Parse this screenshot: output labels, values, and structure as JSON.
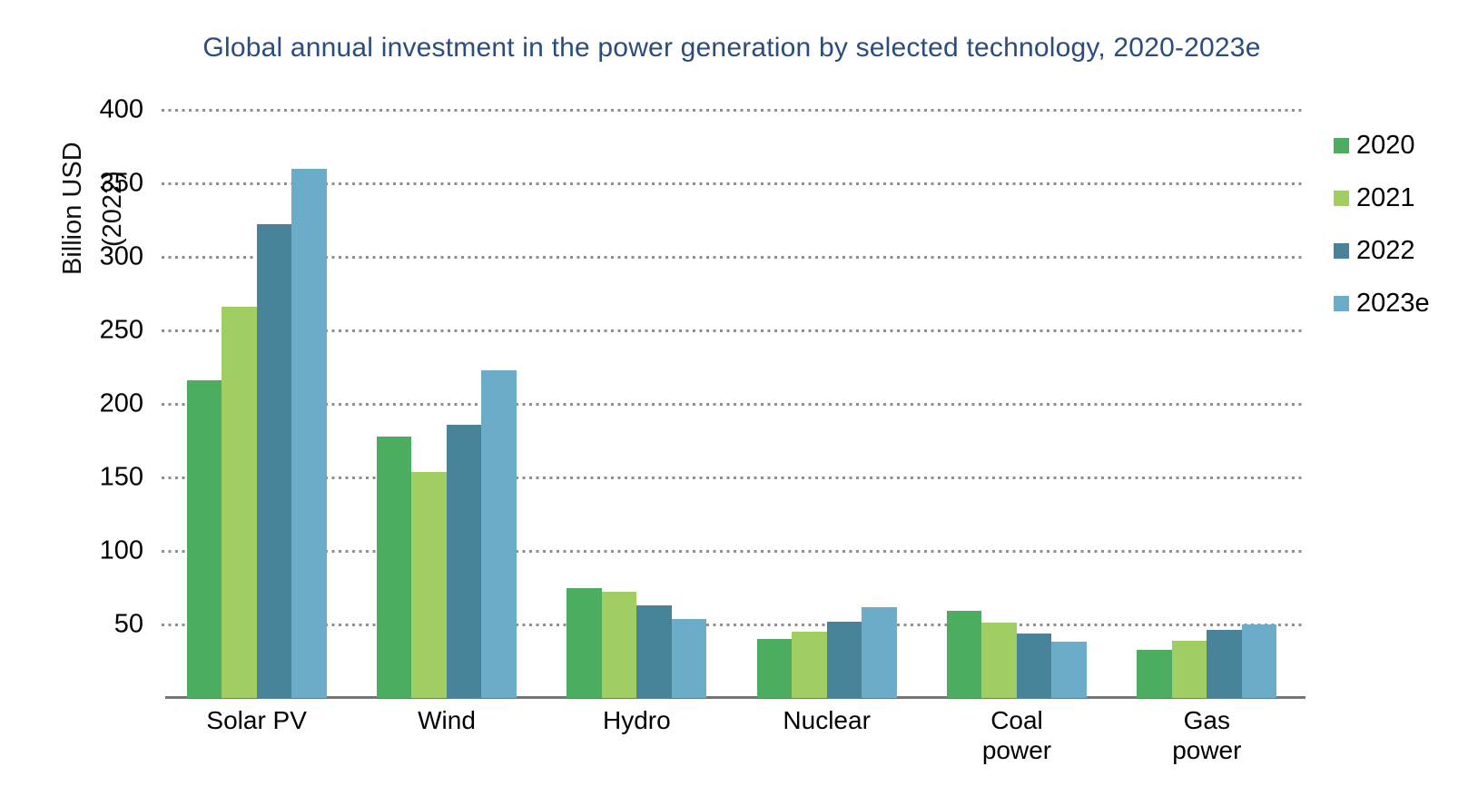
{
  "chart": {
    "title": "Global annual investment in the power generation by selected technology, 2020-2023e",
    "y_axis_title": "Billion USD (2022)"
  },
  "chart_data": {
    "type": "bar",
    "title": "Global annual investment in the power generation by selected technology, 2020-2023e",
    "xlabel": "",
    "ylabel": "Billion USD (2022)",
    "categories": [
      "Solar PV",
      "Wind",
      "Hydro",
      "Nuclear",
      "Coal power",
      "Gas power"
    ],
    "xlabel_lines": [
      "Solar PV",
      "Wind",
      "Hydro",
      "Nuclear",
      "Coal\npower",
      "Gas\npower"
    ],
    "series": [
      {
        "name": "2020",
        "color": "#4CAC5F",
        "values": [
          216,
          178,
          75,
          40,
          59,
          33
        ]
      },
      {
        "name": "2021",
        "color": "#A0CE63",
        "values": [
          266,
          154,
          72,
          45,
          51,
          39
        ]
      },
      {
        "name": "2022",
        "color": "#49839A",
        "values": [
          322,
          186,
          63,
          52,
          44,
          46
        ]
      },
      {
        "name": "2023e",
        "color": "#6BADC9",
        "values": [
          360,
          223,
          54,
          62,
          38,
          50
        ]
      }
    ],
    "ylim": [
      0,
      400
    ],
    "yticks": [
      50,
      100,
      150,
      200,
      250,
      300,
      350,
      400
    ],
    "grid": "horizontal-dotted",
    "legend_position": "right",
    "colors": {
      "title": "#2B4C7E",
      "gridline": "#8f8f8f",
      "axis_line": "#757575",
      "text": "#000000"
    }
  }
}
